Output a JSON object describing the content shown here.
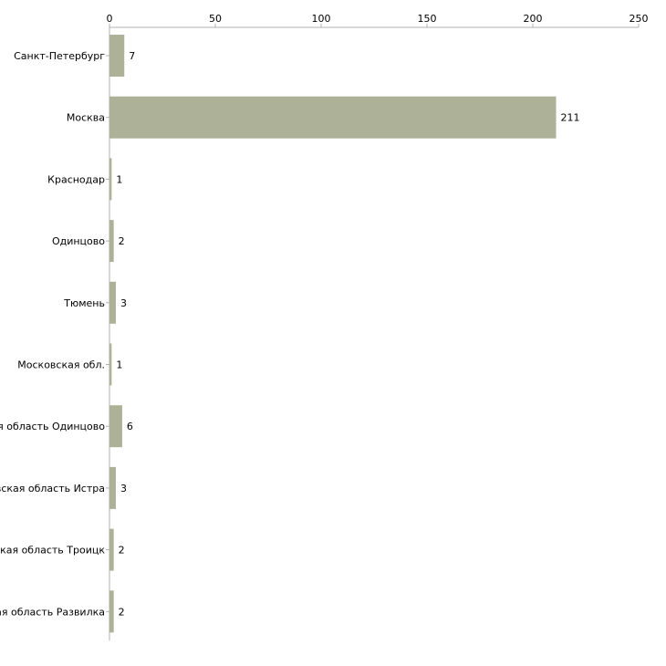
{
  "chart_data": {
    "type": "bar",
    "orientation": "horizontal",
    "title": "",
    "xlabel": "",
    "ylabel": "",
    "xlim": [
      0,
      250
    ],
    "xticks": [
      0,
      50,
      100,
      150,
      200,
      250
    ],
    "tick_labels": [
      "0",
      "50",
      "100",
      "150",
      "200",
      "250"
    ],
    "categories": [
      "Санкт-Петербург",
      "Москва",
      "Краснодар",
      "Одинцово",
      "Тюмень",
      "Московская обл.",
      "Московская область Одинцово",
      "Московская область Истра",
      "Московская область Троицк",
      "Московская область Развилка"
    ],
    "values": [
      7,
      211,
      1,
      2,
      3,
      1,
      6,
      3,
      2,
      2
    ],
    "value_labels": [
      "7",
      "211",
      "1",
      "2",
      "3",
      "1",
      "6",
      "3",
      "2",
      "2"
    ],
    "grid": false,
    "legend": "none",
    "colors": {
      "bar": "#adb198",
      "axis": "#b0b0b0",
      "text": "#000000"
    }
  }
}
